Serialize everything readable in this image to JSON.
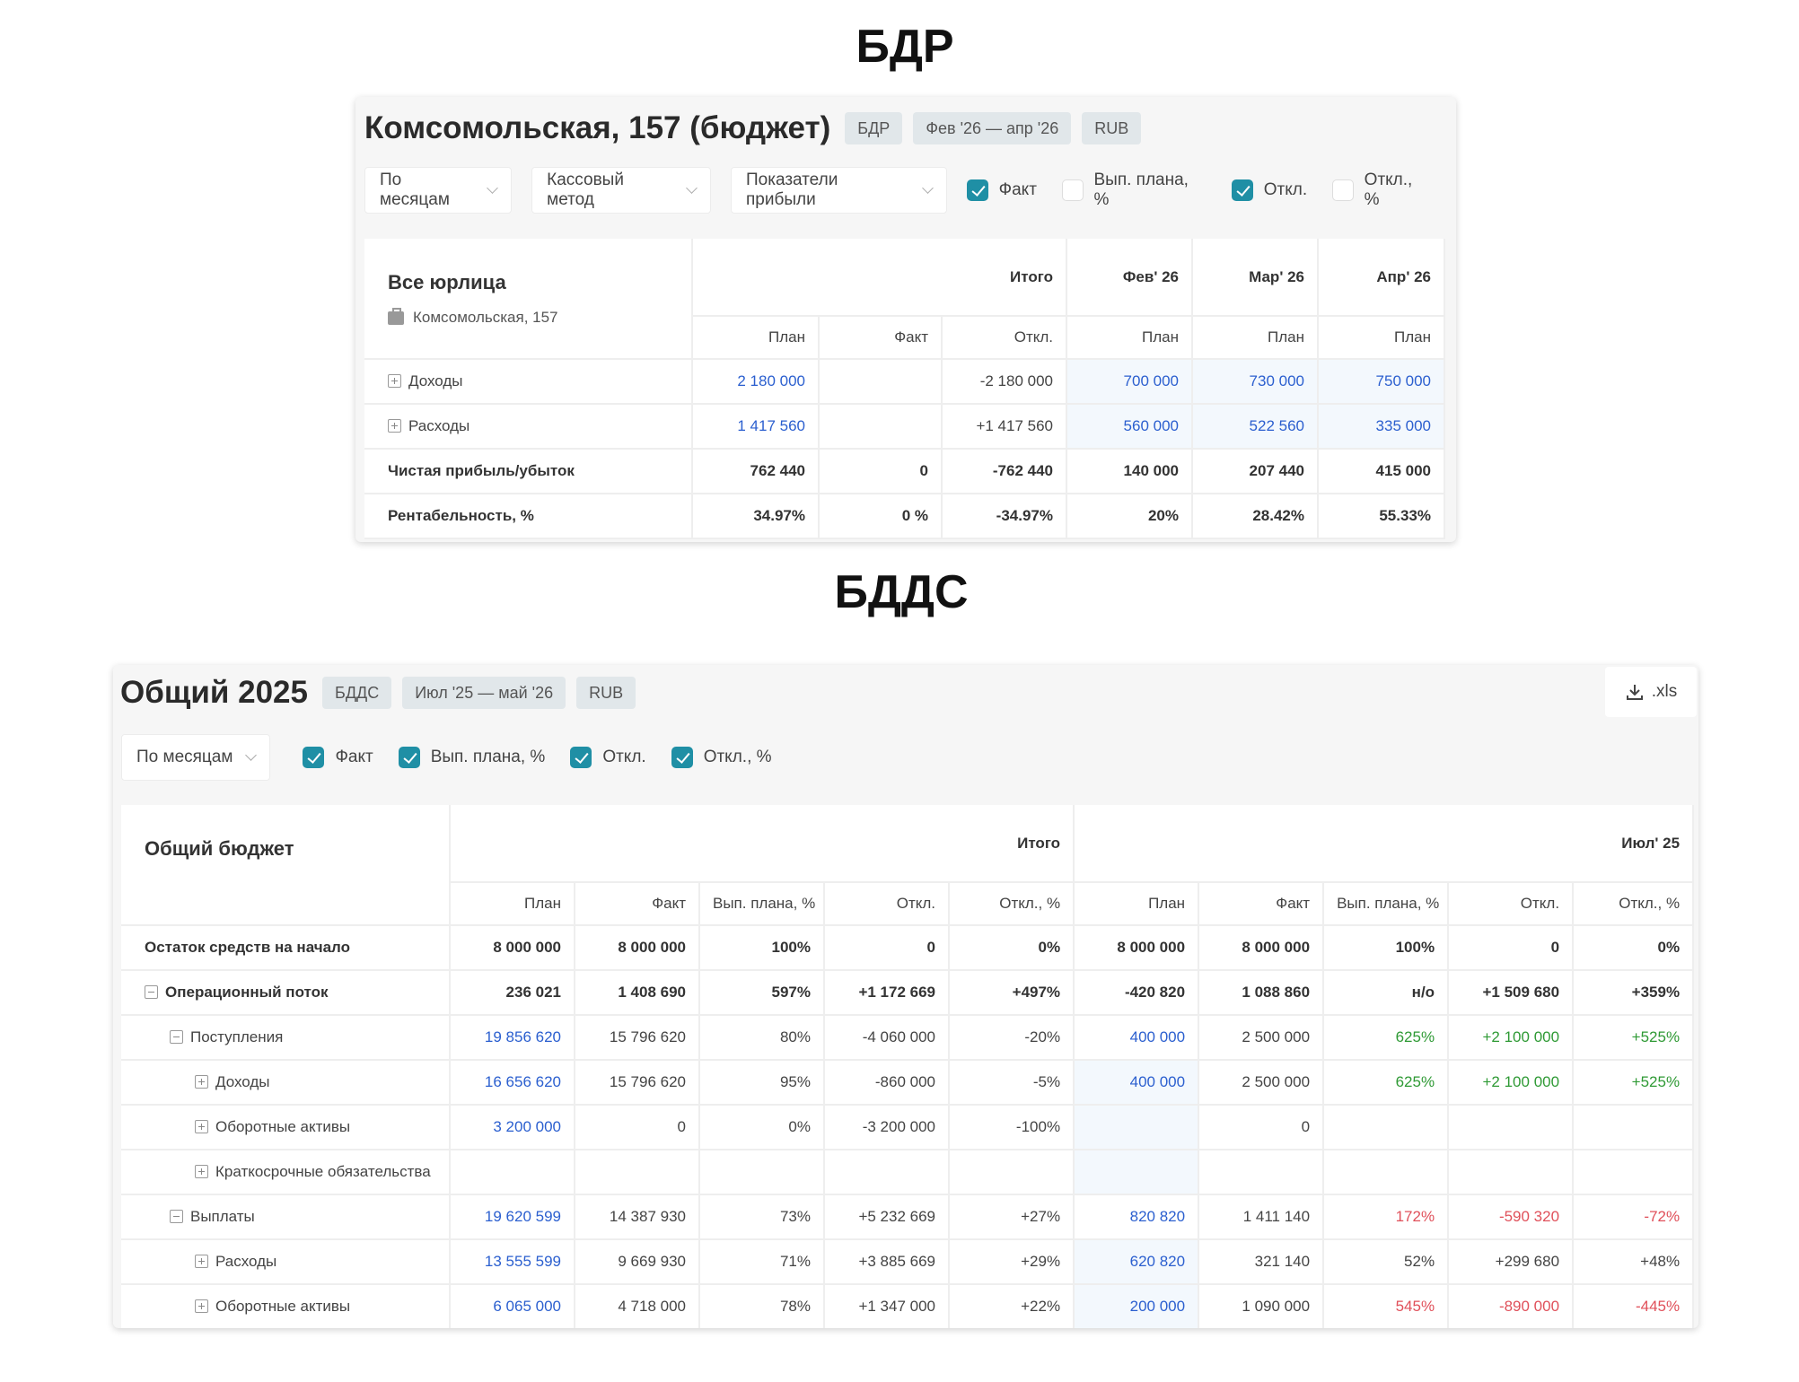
{
  "colors": {
    "accent": "#1f8fa5",
    "blue": "#2b5fcf",
    "green": "#2f9a35",
    "red": "#e0505a"
  },
  "bdr": {
    "section_title": "БДР",
    "title": "Комсомольская, 157 (бюджет)",
    "tags": [
      "БДР",
      "Фев '26 — апр '26",
      "RUB"
    ],
    "dropdowns": [
      "По месяцам",
      "Кассовый метод",
      "Показатели прибыли"
    ],
    "checkboxes": [
      {
        "label": "Факт",
        "checked": true
      },
      {
        "label": "Вып. плана, %",
        "checked": false
      },
      {
        "label": "Откл.",
        "checked": true
      },
      {
        "label": "Откл., %",
        "checked": false
      }
    ],
    "corner_title": "Все юрлица",
    "corner_sub": "Комсомольская, 157",
    "groups": [
      {
        "label": "Итого",
        "span": 3
      },
      {
        "label": "Фев' 26",
        "span": 1
      },
      {
        "label": "Мар' 26",
        "span": 1
      },
      {
        "label": "Апр' 26",
        "span": 1
      }
    ],
    "subheaders": [
      "План",
      "Факт",
      "Откл.",
      "План",
      "План",
      "План"
    ],
    "rows": [
      {
        "label": "Доходы",
        "expand": "plus",
        "level": 0,
        "bold": false,
        "values": [
          "2 180 000",
          "",
          "-2 180 000",
          "700 000",
          "730 000",
          "750 000"
        ],
        "styles": [
          "b",
          "",
          "",
          "bh",
          "bh",
          "bh"
        ]
      },
      {
        "label": "Расходы",
        "expand": "plus",
        "level": 0,
        "bold": false,
        "values": [
          "1 417 560",
          "",
          "+1 417 560",
          "560 000",
          "522 560",
          "335 000"
        ],
        "styles": [
          "b",
          "",
          "",
          "bh",
          "bh",
          "bh"
        ]
      },
      {
        "label": "Чистая прибыль/убыток",
        "expand": "",
        "level": 0,
        "bold": true,
        "values": [
          "762 440",
          "0",
          "-762 440",
          "140 000",
          "207 440",
          "415 000"
        ],
        "styles": [
          "",
          "",
          "",
          "",
          "",
          ""
        ]
      },
      {
        "label": "Рентабельность, %",
        "expand": "",
        "level": 0,
        "bold": true,
        "values": [
          "34.97%",
          "0 %",
          "-34.97%",
          "20%",
          "28.42%",
          "55.33%"
        ],
        "styles": [
          "",
          "",
          "",
          "",
          "",
          ""
        ]
      }
    ]
  },
  "bdds": {
    "section_title": "БДДС",
    "title": "Общий 2025",
    "tags": [
      "БДДС",
      "Июл '25 — май '26",
      "RUB"
    ],
    "export_label": ".xls",
    "dropdowns": [
      "По месяцам"
    ],
    "checkboxes": [
      {
        "label": "Факт",
        "checked": true
      },
      {
        "label": "Вып. плана, %",
        "checked": true
      },
      {
        "label": "Откл.",
        "checked": true
      },
      {
        "label": "Откл., %",
        "checked": true
      }
    ],
    "corner_title": "Общий бюджет",
    "groups": [
      {
        "label": "Итого",
        "span": 5
      },
      {
        "label": "Июл' 25",
        "span": 5
      }
    ],
    "subheaders": [
      "План",
      "Факт",
      "Вып. плана, %",
      "Откл.",
      "Откл., %",
      "План",
      "Факт",
      "Вып. плана, %",
      "Откл.",
      "Откл., %"
    ],
    "rows": [
      {
        "label": "Остаток средств на начало",
        "expand": "",
        "level": 0,
        "bold": true,
        "values": [
          "8 000 000",
          "8 000 000",
          "100%",
          "0",
          "0%",
          "8 000 000",
          "8 000 000",
          "100%",
          "0",
          "0%"
        ],
        "styles": [
          "",
          "",
          "",
          "",
          "",
          "",
          "",
          "",
          "",
          ""
        ]
      },
      {
        "label": "Операционный поток",
        "expand": "minus",
        "level": 0,
        "bold": true,
        "values": [
          "236 021",
          "1 408 690",
          "597%",
          "+1 172 669",
          "+497%",
          "-420 820",
          "1 088 860",
          "н/о",
          "+1 509 680",
          "+359%"
        ],
        "styles": [
          "",
          "",
          "",
          "",
          "",
          "",
          "",
          "",
          "",
          ""
        ]
      },
      {
        "label": "Поступления",
        "expand": "minus",
        "level": 1,
        "bold": false,
        "values": [
          "19 856 620",
          "15 796 620",
          "80%",
          "-4 060 000",
          "-20%",
          "400 000",
          "2 500 000",
          "625%",
          "+2 100 000",
          "+525%"
        ],
        "styles": [
          "b",
          "",
          "",
          "",
          "",
          "b",
          "",
          "g",
          "g",
          "g"
        ]
      },
      {
        "label": "Доходы",
        "expand": "plus",
        "level": 2,
        "bold": false,
        "values": [
          "16 656 620",
          "15 796 620",
          "95%",
          "-860 000",
          "-5%",
          "400 000",
          "2 500 000",
          "625%",
          "+2 100 000",
          "+525%"
        ],
        "styles": [
          "b",
          "",
          "",
          "",
          "",
          "bh",
          "",
          "g",
          "g",
          "g"
        ]
      },
      {
        "label": "Оборотные активы",
        "expand": "plus",
        "level": 2,
        "bold": false,
        "values": [
          "3 200 000",
          "0",
          "0%",
          "-3 200 000",
          "-100%",
          "",
          "0",
          "",
          "",
          ""
        ],
        "styles": [
          "b",
          "",
          "",
          "",
          "",
          "h",
          "",
          "",
          "",
          ""
        ]
      },
      {
        "label": "Краткосрочные обязательства",
        "expand": "plus",
        "level": 2,
        "bold": false,
        "values": [
          "",
          "",
          "",
          "",
          "",
          "",
          "",
          "",
          "",
          ""
        ],
        "styles": [
          "",
          "",
          "",
          "",
          "",
          "h",
          "",
          "",
          "",
          ""
        ]
      },
      {
        "label": "Выплаты",
        "expand": "minus",
        "level": 1,
        "bold": false,
        "values": [
          "19 620 599",
          "14 387 930",
          "73%",
          "+5 232 669",
          "+27%",
          "820 820",
          "1 411 140",
          "172%",
          "-590 320",
          "-72%"
        ],
        "styles": [
          "b",
          "",
          "",
          "",
          "",
          "b",
          "",
          "r",
          "r",
          "r"
        ]
      },
      {
        "label": "Расходы",
        "expand": "plus",
        "level": 2,
        "bold": false,
        "values": [
          "13 555 599",
          "9 669 930",
          "71%",
          "+3 885 669",
          "+29%",
          "620 820",
          "321 140",
          "52%",
          "+299 680",
          "+48%"
        ],
        "styles": [
          "b",
          "",
          "",
          "",
          "",
          "bh",
          "",
          "",
          "",
          ""
        ]
      },
      {
        "label": "Оборотные активы",
        "expand": "plus",
        "level": 2,
        "bold": false,
        "values": [
          "6 065 000",
          "4 718 000",
          "78%",
          "+1 347 000",
          "+22%",
          "200 000",
          "1 090 000",
          "545%",
          "-890 000",
          "-445%"
        ],
        "styles": [
          "b",
          "",
          "",
          "",
          "",
          "bh",
          "",
          "r",
          "r",
          "r"
        ]
      }
    ]
  }
}
